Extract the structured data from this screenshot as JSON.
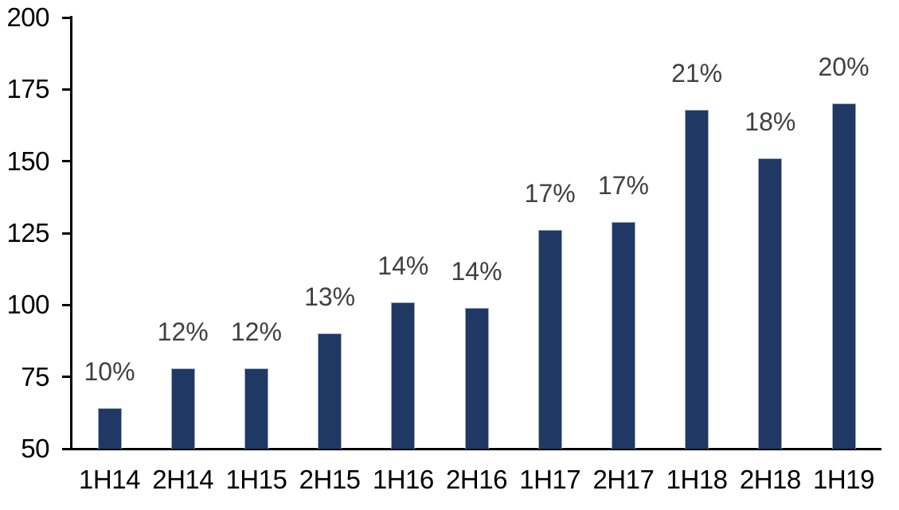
{
  "chart_data": {
    "type": "bar",
    "title": "",
    "xlabel": "",
    "ylabel": "",
    "categories": [
      "1H14",
      "2H14",
      "1H15",
      "2H15",
      "1H16",
      "2H16",
      "1H17",
      "2H17",
      "1H18",
      "2H18",
      "1H19"
    ],
    "values": [
      64,
      78,
      78,
      90,
      101,
      99,
      126,
      129,
      168,
      151,
      170
    ],
    "bar_labels": [
      "10%",
      "12%",
      "12%",
      "13%",
      "14%",
      "14%",
      "17%",
      "17%",
      "21%",
      "18%",
      "20%"
    ],
    "ylim": [
      50,
      200
    ],
    "yticks": [
      50,
      75,
      100,
      125,
      150,
      175,
      200
    ],
    "grid": false,
    "legend": false,
    "colors": {
      "bar_fill": "#1F3864",
      "bar_border": "#9DA9C1",
      "data_label": "#404040",
      "axis_label": "#000000",
      "axis_line": "#000000",
      "background": "#FFFFFF"
    }
  }
}
